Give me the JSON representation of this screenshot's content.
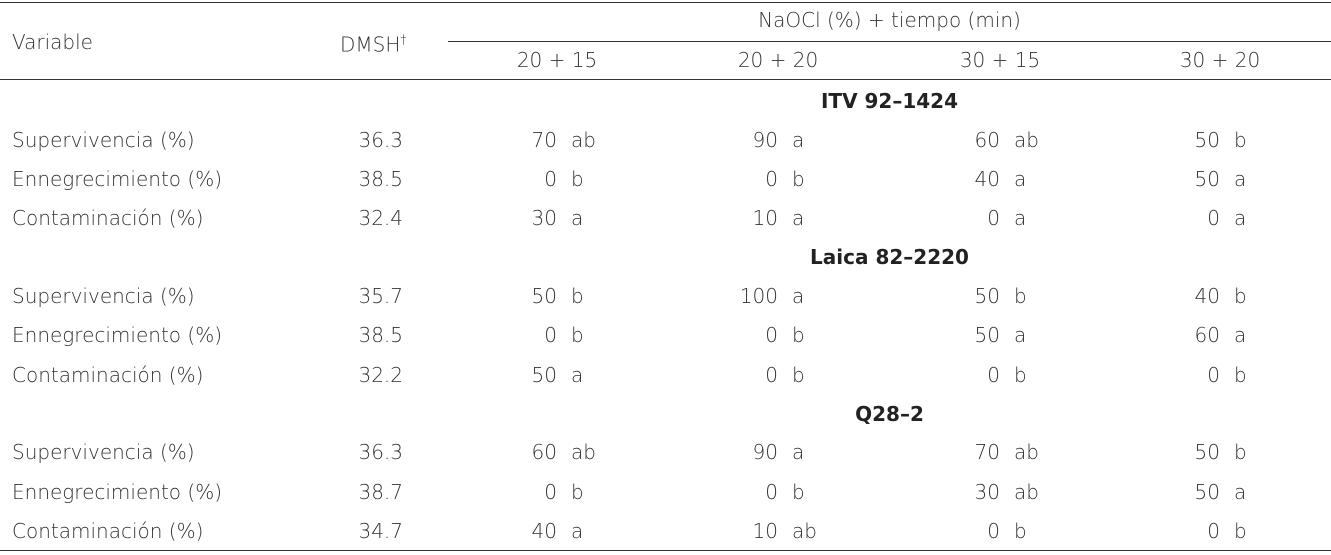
{
  "header": {
    "variable": "Variable",
    "dmsh": "DMSH",
    "dmsh_mark": "†",
    "group": "NaOCl (%) + tiempo (min)",
    "treatments": [
      "20 + 15",
      "20 + 20",
      "30 + 15",
      "30 + 20"
    ]
  },
  "sections": [
    {
      "title": "ITV 92–1424",
      "rows": [
        {
          "variable": "Supervivencia (%)",
          "dmsh": 36.3,
          "cells": [
            {
              "value": 70,
              "group": "ab"
            },
            {
              "value": 90,
              "group": "a"
            },
            {
              "value": 60,
              "group": "ab"
            },
            {
              "value": 50,
              "group": "b"
            }
          ]
        },
        {
          "variable": "Ennegrecimiento (%)",
          "dmsh": 38.5,
          "cells": [
            {
              "value": 0,
              "group": "b"
            },
            {
              "value": 0,
              "group": "b"
            },
            {
              "value": 40,
              "group": "a"
            },
            {
              "value": 50,
              "group": "a"
            }
          ]
        },
        {
          "variable": "Contaminación (%)",
          "dmsh": 32.4,
          "cells": [
            {
              "value": 30,
              "group": "a"
            },
            {
              "value": 10,
              "group": "a"
            },
            {
              "value": 0,
              "group": "a"
            },
            {
              "value": 0,
              "group": "a"
            }
          ]
        }
      ]
    },
    {
      "title": "Laica 82–2220",
      "rows": [
        {
          "variable": "Supervivencia (%)",
          "dmsh": 35.7,
          "cells": [
            {
              "value": 50,
              "group": "b"
            },
            {
              "value": 100,
              "group": "a"
            },
            {
              "value": 50,
              "group": "b"
            },
            {
              "value": 40,
              "group": "b"
            }
          ]
        },
        {
          "variable": "Ennegrecimiento (%)",
          "dmsh": 38.5,
          "cells": [
            {
              "value": 0,
              "group": "b"
            },
            {
              "value": 0,
              "group": "b"
            },
            {
              "value": 50,
              "group": "a"
            },
            {
              "value": 60,
              "group": "a"
            }
          ]
        },
        {
          "variable": "Contaminación (%)",
          "dmsh": 32.2,
          "cells": [
            {
              "value": 50,
              "group": "a"
            },
            {
              "value": 0,
              "group": "b"
            },
            {
              "value": 0,
              "group": "b"
            },
            {
              "value": 0,
              "group": "b"
            }
          ]
        }
      ]
    },
    {
      "title": "Q28–2",
      "rows": [
        {
          "variable": "Supervivencia (%)",
          "dmsh": 36.3,
          "cells": [
            {
              "value": 60,
              "group": "ab"
            },
            {
              "value": 90,
              "group": "a"
            },
            {
              "value": 70,
              "group": "ab"
            },
            {
              "value": 50,
              "group": "b"
            }
          ]
        },
        {
          "variable": "Ennegrecimiento (%)",
          "dmsh": 38.7,
          "cells": [
            {
              "value": 0,
              "group": "b"
            },
            {
              "value": 0,
              "group": "b"
            },
            {
              "value": 30,
              "group": "ab"
            },
            {
              "value": 50,
              "group": "a"
            }
          ]
        },
        {
          "variable": "Contaminación (%)",
          "dmsh": 34.7,
          "cells": [
            {
              "value": 40,
              "group": "a"
            },
            {
              "value": 10,
              "group": "ab"
            },
            {
              "value": 0,
              "group": "b"
            },
            {
              "value": 0,
              "group": "b"
            }
          ]
        }
      ]
    }
  ]
}
